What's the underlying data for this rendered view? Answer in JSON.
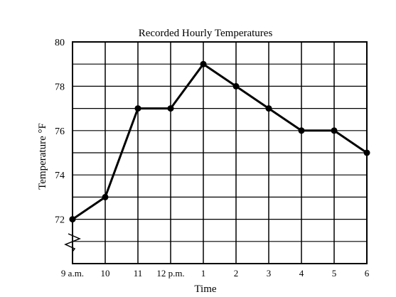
{
  "chart_data": {
    "type": "line",
    "title": "Recorded Hourly Temperatures",
    "xlabel": "Time",
    "ylabel": "Temperature °F",
    "categories": [
      "9 a.m.",
      "10",
      "11",
      "12 p.m.",
      "1",
      "2",
      "3",
      "4",
      "5",
      "6"
    ],
    "y_ticks": [
      "72",
      "74",
      "76",
      "78",
      "80"
    ],
    "ylim": [
      70,
      80
    ],
    "axis_break": true,
    "grid": true,
    "series": [
      {
        "values": [
          72,
          73,
          77,
          77,
          79,
          78,
          77,
          76,
          76,
          75
        ]
      }
    ],
    "colors": {
      "line": "#000000",
      "grid": "#000000",
      "background": "#ffffff"
    }
  }
}
